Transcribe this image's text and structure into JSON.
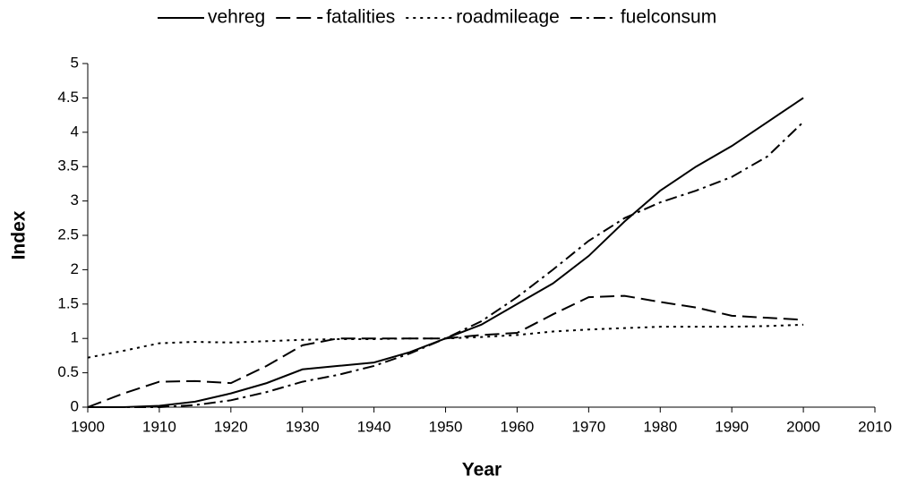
{
  "chart_data": {
    "type": "line",
    "x": [
      1900,
      1905,
      1910,
      1915,
      1920,
      1925,
      1930,
      1935,
      1940,
      1945,
      1950,
      1955,
      1960,
      1965,
      1970,
      1975,
      1980,
      1985,
      1990,
      1995,
      2000
    ],
    "series": [
      {
        "name": "vehreg",
        "color": "#000000",
        "dash": "solid",
        "values": [
          0,
          0,
          0.02,
          0.08,
          0.2,
          0.35,
          0.55,
          0.6,
          0.65,
          0.8,
          1.0,
          1.2,
          1.5,
          1.8,
          2.2,
          2.7,
          3.15,
          3.5,
          3.8,
          4.15,
          4.5
        ]
      },
      {
        "name": "fatalities",
        "color": "#000000",
        "dash": "dashed",
        "values": [
          0,
          0.2,
          0.37,
          0.38,
          0.35,
          0.6,
          0.9,
          1.0,
          1.0,
          1.0,
          1.0,
          1.05,
          1.08,
          1.35,
          1.6,
          1.62,
          1.53,
          1.45,
          1.33,
          1.3,
          1.27
        ]
      },
      {
        "name": "roadmileage",
        "color": "#000000",
        "dash": "dotted",
        "values": [
          0.72,
          0.82,
          0.93,
          0.95,
          0.94,
          0.96,
          0.98,
          0.99,
          0.99,
          1.0,
          1.0,
          1.02,
          1.05,
          1.1,
          1.13,
          1.15,
          1.17,
          1.17,
          1.17,
          1.18,
          1.2
        ]
      },
      {
        "name": "fuelconsum",
        "color": "#000000",
        "dash": "dashdot",
        "values": [
          0,
          0,
          0,
          0.03,
          0.1,
          0.22,
          0.37,
          0.47,
          0.6,
          0.78,
          1.0,
          1.25,
          1.6,
          2.0,
          2.42,
          2.75,
          2.98,
          3.15,
          3.35,
          3.65,
          4.15
        ]
      }
    ],
    "xlabel": "Year",
    "ylabel": "Index",
    "xlim": [
      1900,
      2010
    ],
    "xticks": [
      1900,
      1910,
      1920,
      1930,
      1940,
      1950,
      1960,
      1970,
      1980,
      1990,
      2000,
      2010
    ],
    "ylim": [
      0,
      5
    ],
    "yticks": [
      0,
      0.5,
      1,
      1.5,
      2,
      2.5,
      3,
      3.5,
      4,
      4.5,
      5
    ],
    "grid": false,
    "legend": "top"
  }
}
